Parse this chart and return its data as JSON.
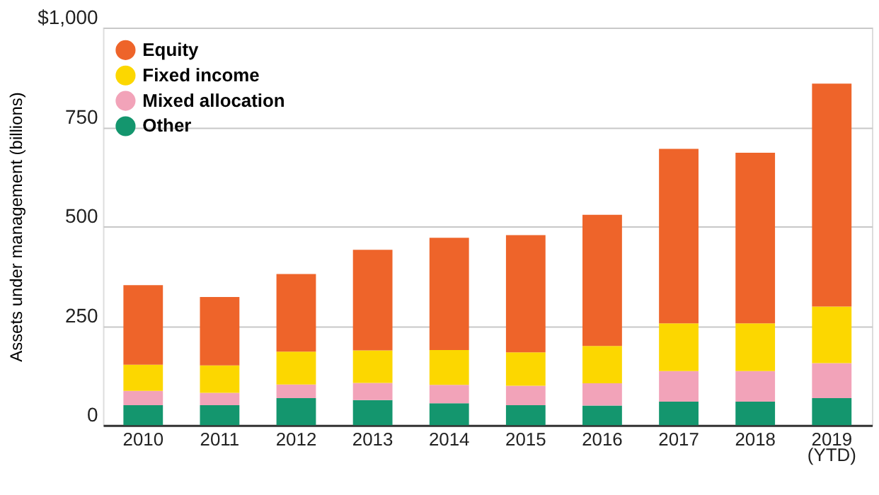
{
  "chart_data": {
    "type": "bar",
    "stacked": true,
    "ylabel": "Assets under management (billions)",
    "categories": [
      "2010",
      "2011",
      "2012",
      "2013",
      "2014",
      "2015",
      "2016",
      "2017",
      "2018",
      "2019\n(YTD)"
    ],
    "series": [
      {
        "name": "Other",
        "color": "#14966e",
        "values": [
          50,
          50,
          68,
          63,
          55,
          50,
          49,
          59,
          59,
          68
        ]
      },
      {
        "name": "Mixed allocation",
        "color": "#f2a3b9",
        "values": [
          36,
          31,
          34,
          43,
          46,
          49,
          56,
          77,
          77,
          88
        ]
      },
      {
        "name": "Fixed income",
        "color": "#fcd700",
        "values": [
          66,
          69,
          83,
          82,
          88,
          84,
          94,
          120,
          120,
          142
        ]
      },
      {
        "name": "Equity",
        "color": "#ee642a",
        "values": [
          200,
          172,
          195,
          253,
          282,
          295,
          330,
          439,
          429,
          561
        ]
      }
    ],
    "ylim": [
      0,
      1000
    ],
    "yticks": [
      0,
      250,
      500,
      750,
      {
        "value": 1000,
        "label": "$1,000"
      }
    ],
    "grid": "y",
    "legend": "top left"
  }
}
